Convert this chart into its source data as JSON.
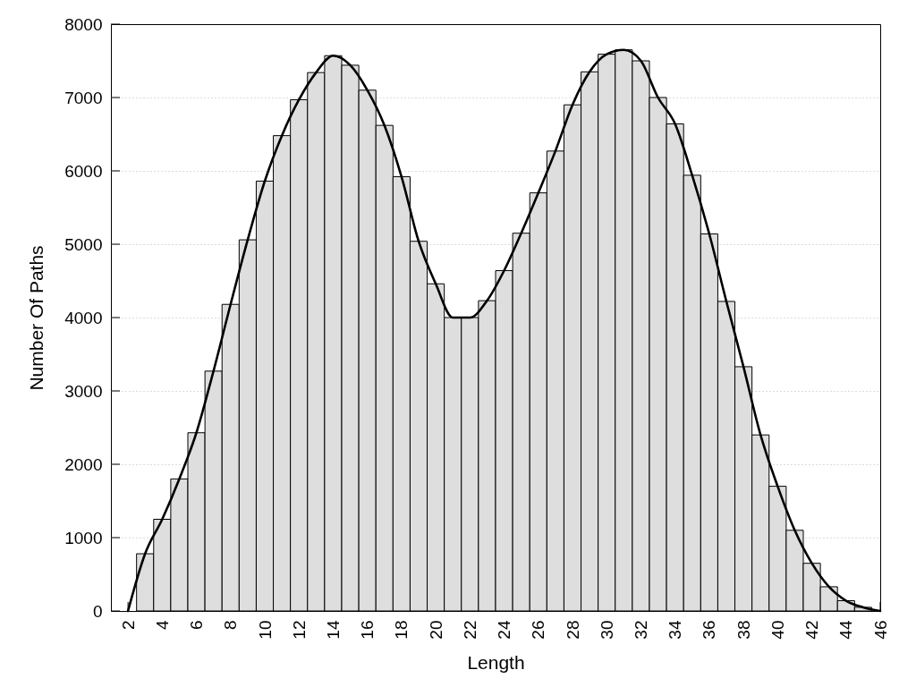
{
  "chart_data": {
    "type": "histogram",
    "xlabel": "Length",
    "ylabel": "Number Of Paths",
    "bins": [
      2.5,
      3.5,
      4.5,
      5.5,
      6.5,
      7.5,
      8.5,
      9.5,
      10.5,
      11.5,
      12.5,
      13.5,
      14.5,
      15.5,
      16.5,
      17.5,
      18.5,
      19.5,
      20.5,
      21.5,
      22.5,
      23.5,
      24.5,
      25.5,
      26.5,
      27.5,
      28.5,
      29.5,
      30.5,
      31.5,
      32.5,
      33.5,
      34.5,
      35.5,
      36.5,
      37.5,
      38.5,
      39.5,
      40.5,
      41.5,
      42.5,
      43.5,
      44.5,
      45.5
    ],
    "series": [
      {
        "color": "#dedede",
        "values": [
          780,
          1250,
          1800,
          2430,
          3270,
          4180,
          5060,
          5860,
          6480,
          6970,
          7340,
          7570,
          7440,
          7100,
          6620,
          5920,
          5040,
          4460,
          4000,
          4000,
          4230,
          4640,
          5150,
          5700,
          6270,
          6900,
          7350,
          7590,
          7650,
          7500,
          7000,
          6640,
          5940,
          5140,
          4220,
          3330,
          2400,
          1700,
          1100,
          650,
          330,
          140,
          50
        ]
      },
      {
        "type": "line",
        "color": "#000000",
        "x": [
          2,
          3,
          4,
          5,
          6,
          7,
          8,
          9,
          10,
          11,
          12,
          13,
          14,
          15,
          16,
          17,
          18,
          19,
          20,
          21,
          22,
          23,
          24,
          25,
          26,
          27,
          28,
          29,
          30,
          31,
          32,
          33,
          34,
          35,
          36,
          37,
          38,
          39,
          40,
          41,
          42,
          43,
          44,
          45,
          46
        ],
        "values": [
          0,
          780,
          1250,
          1800,
          2430,
          3270,
          4180,
          5060,
          5860,
          6480,
          6970,
          7340,
          7570,
          7440,
          7100,
          6620,
          5920,
          5040,
          4460,
          4000,
          4000,
          4230,
          4640,
          5150,
          5700,
          6270,
          6900,
          7350,
          7590,
          7650,
          7500,
          7000,
          6640,
          5940,
          5140,
          4220,
          3330,
          2400,
          1700,
          1100,
          650,
          330,
          140,
          50,
          0
        ]
      }
    ],
    "xlim": [
      1,
      46
    ],
    "xticks": [
      2,
      4,
      6,
      8,
      10,
      12,
      14,
      16,
      18,
      20,
      22,
      24,
      26,
      28,
      30,
      32,
      34,
      36,
      38,
      40,
      42,
      44,
      46
    ],
    "ylim": [
      0,
      8000
    ],
    "yticks": [
      0,
      1000,
      2000,
      3000,
      4000,
      5000,
      6000,
      7000,
      8000
    ],
    "grid": "y"
  }
}
